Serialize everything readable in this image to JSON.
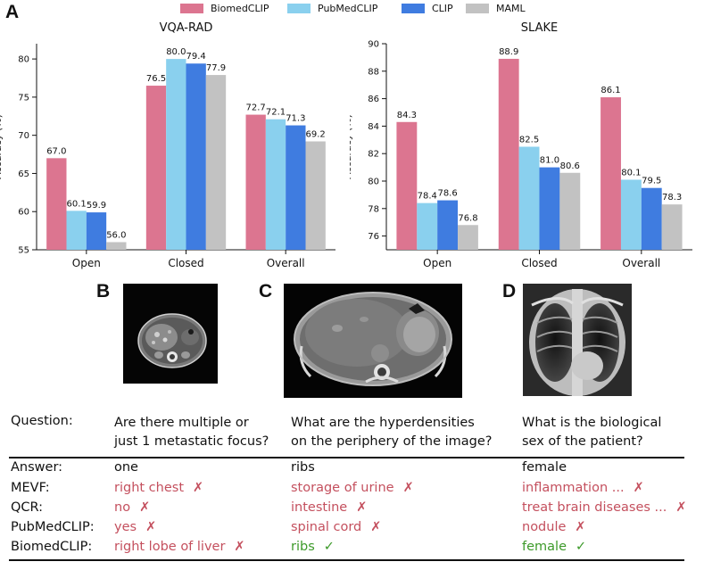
{
  "panel_a": {
    "letter": "A"
  },
  "panel_b": {
    "letter": "B"
  },
  "panel_c": {
    "letter": "C"
  },
  "panel_d": {
    "letter": "D"
  },
  "legend": [
    {
      "name": "BiomedCLIP",
      "color": "#dc7590"
    },
    {
      "name": "PubMedCLIP",
      "color": "#8ad0ee"
    },
    {
      "name": "CLIP",
      "color": "#3f7ce0"
    },
    {
      "name": "MAML",
      "color": "#c2c2c2"
    }
  ],
  "chart_data": [
    {
      "type": "bar",
      "title": "VQA-RAD",
      "ylabel": "Accuracy (%)",
      "xlabel": "",
      "ylim": [
        55,
        82
      ],
      "yticks": [
        55,
        60,
        65,
        70,
        75,
        80
      ],
      "categories": [
        "Open",
        "Closed",
        "Overall"
      ],
      "series": [
        {
          "name": "BiomedCLIP",
          "values": [
            67.0,
            76.5,
            72.7
          ]
        },
        {
          "name": "PubMedCLIP",
          "values": [
            60.1,
            80.0,
            72.1
          ]
        },
        {
          "name": "CLIP",
          "values": [
            59.9,
            79.4,
            71.3
          ]
        },
        {
          "name": "MAML",
          "values": [
            56.0,
            77.9,
            69.2
          ]
        }
      ]
    },
    {
      "type": "bar",
      "title": "SLAKE",
      "ylabel": "Accuracy (%)",
      "xlabel": "",
      "ylim": [
        75,
        90
      ],
      "yticks": [
        76,
        78,
        80,
        82,
        84,
        86,
        88,
        90
      ],
      "categories": [
        "Open",
        "Closed",
        "Overall"
      ],
      "series": [
        {
          "name": "BiomedCLIP",
          "values": [
            84.3,
            88.9,
            86.1
          ]
        },
        {
          "name": "PubMedCLIP",
          "values": [
            78.4,
            82.5,
            80.1
          ]
        },
        {
          "name": "CLIP",
          "values": [
            78.6,
            81.0,
            79.5
          ]
        },
        {
          "name": "MAML",
          "values": [
            76.8,
            80.6,
            78.3
          ]
        }
      ]
    }
  ],
  "table": {
    "question_label": "Question:",
    "rows": [
      "Answer:",
      "MEVF:",
      "QCR:",
      "PubMedCLIP:",
      "BiomedCLIP:"
    ],
    "columns": [
      {
        "question": [
          "Are there multiple or",
          "just 1 metastatic focus?"
        ],
        "answers": [
          {
            "text": "one",
            "mark": "",
            "status": "answer"
          },
          {
            "text": "right chest",
            "mark": "✗",
            "status": "wrong"
          },
          {
            "text": "no",
            "mark": "✗",
            "status": "wrong"
          },
          {
            "text": "yes",
            "mark": "✗",
            "status": "wrong"
          },
          {
            "text": "right lobe of liver",
            "mark": "✗",
            "status": "wrong"
          }
        ]
      },
      {
        "question": [
          "What are the hyperdensities",
          "on the periphery of the image?"
        ],
        "answers": [
          {
            "text": "ribs",
            "mark": "",
            "status": "answer"
          },
          {
            "text": "storage of urine",
            "mark": "✗",
            "status": "wrong"
          },
          {
            "text": "intestine",
            "mark": "✗",
            "status": "wrong"
          },
          {
            "text": "spinal cord",
            "mark": "✗",
            "status": "wrong"
          },
          {
            "text": "ribs",
            "mark": "✓",
            "status": "right"
          }
        ]
      },
      {
        "question": [
          "What is the biological",
          "sex of the patient?"
        ],
        "answers": [
          {
            "text": "female",
            "mark": "",
            "status": "answer"
          },
          {
            "text": "inflammation ...",
            "mark": "✗",
            "status": "wrong"
          },
          {
            "text": "treat brain diseases ...",
            "mark": "✗",
            "status": "wrong"
          },
          {
            "text": "nodule",
            "mark": "✗",
            "status": "wrong"
          },
          {
            "text": "female",
            "mark": "✓",
            "status": "right"
          }
        ]
      }
    ],
    "colors": {
      "answer": "#111111",
      "wrong": "#c4505e",
      "right": "#3d9a2a"
    }
  }
}
